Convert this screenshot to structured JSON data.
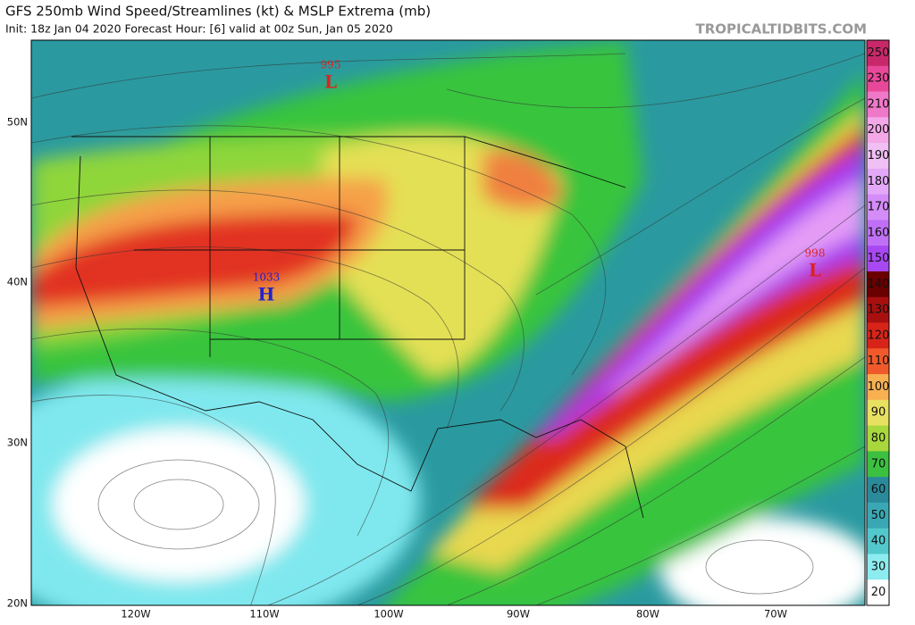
{
  "header": {
    "title": "GFS 250mb Wind Speed/Streamlines (kt) & MSLP Extrema (mb)",
    "subtitle": "Init: 18z Jan 04 2020   Forecast Hour: [6]   valid at 00z Sun, Jan 05 2020",
    "credit": "TROPICALTIDBITS.COM"
  },
  "colorbar": {
    "labels": [
      "250",
      "230",
      "210",
      "200",
      "190",
      "180",
      "170",
      "160",
      "150",
      "140",
      "130",
      "120",
      "110",
      "100",
      "90",
      "80",
      "70",
      "60",
      "50",
      "40",
      "30",
      "20"
    ]
  },
  "axes": {
    "latitudes": [
      "50N",
      "40N",
      "30N",
      "20N"
    ],
    "longitudes": [
      "120W",
      "110W",
      "100W",
      "90W",
      "80W",
      "70W"
    ]
  },
  "pressure_centers": [
    {
      "value": "995",
      "type": "L"
    },
    {
      "value": "1033",
      "type": "H"
    },
    {
      "value": "998",
      "type": "L"
    }
  ]
}
